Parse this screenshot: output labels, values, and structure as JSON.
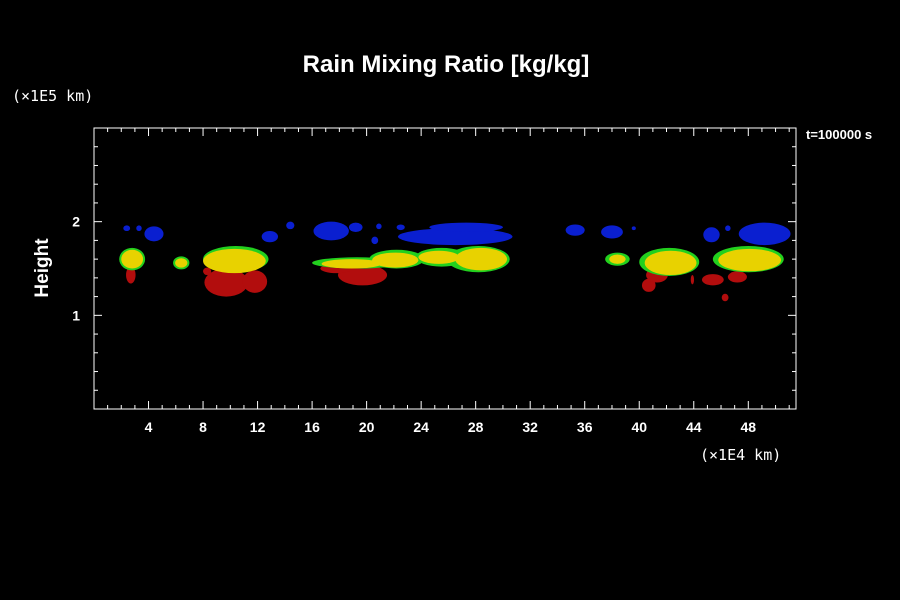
{
  "chart_data": {
    "type": "heatmap",
    "title": "Rain Mixing Ratio [kg/kg]",
    "ylabel": "Height",
    "x_unit_label": "(×1E4 km)",
    "y_unit_label": "(×1E5 km)",
    "time_label": "t=100000 s",
    "xlim": [
      0,
      51.5
    ],
    "ylim": [
      0,
      3
    ],
    "x_ticks": [
      4,
      8,
      12,
      16,
      20,
      24,
      28,
      32,
      36,
      40,
      44,
      48
    ],
    "y_ticks": [
      1,
      2
    ],
    "colors": {
      "background": "#000000",
      "axis": "#ffffff",
      "blue": "#0a1fd0",
      "green": "#22d01e",
      "yellow": "#e8d200",
      "red": "#b20d0d"
    },
    "regions": [
      {
        "color": "blue",
        "x": 2.4,
        "y": 1.93,
        "rx": 0.25,
        "ry": 0.03
      },
      {
        "color": "blue",
        "x": 3.3,
        "y": 1.93,
        "rx": 0.2,
        "ry": 0.03
      },
      {
        "color": "blue",
        "x": 4.4,
        "y": 1.87,
        "rx": 0.7,
        "ry": 0.08
      },
      {
        "color": "blue",
        "x": 12.9,
        "y": 1.84,
        "rx": 0.6,
        "ry": 0.06
      },
      {
        "color": "blue",
        "x": 14.4,
        "y": 1.96,
        "rx": 0.3,
        "ry": 0.04
      },
      {
        "color": "blue",
        "x": 17.4,
        "y": 1.9,
        "rx": 1.3,
        "ry": 0.1
      },
      {
        "color": "blue",
        "x": 19.2,
        "y": 1.94,
        "rx": 0.5,
        "ry": 0.05
      },
      {
        "color": "blue",
        "x": 20.9,
        "y": 1.95,
        "rx": 0.2,
        "ry": 0.03
      },
      {
        "color": "blue",
        "x": 20.6,
        "y": 1.8,
        "rx": 0.25,
        "ry": 0.04
      },
      {
        "color": "blue",
        "x": 22.5,
        "y": 1.94,
        "rx": 0.3,
        "ry": 0.03
      },
      {
        "color": "blue",
        "x": 26.5,
        "y": 1.84,
        "rx": 4.2,
        "ry": 0.09
      },
      {
        "color": "blue",
        "x": 27.3,
        "y": 1.94,
        "rx": 2.7,
        "ry": 0.05
      },
      {
        "color": "blue",
        "x": 35.3,
        "y": 1.91,
        "rx": 0.7,
        "ry": 0.06
      },
      {
        "color": "blue",
        "x": 38.0,
        "y": 1.89,
        "rx": 0.8,
        "ry": 0.07
      },
      {
        "color": "blue",
        "x": 39.6,
        "y": 1.93,
        "rx": 0.15,
        "ry": 0.02
      },
      {
        "color": "blue",
        "x": 45.3,
        "y": 1.86,
        "rx": 0.6,
        "ry": 0.08
      },
      {
        "color": "blue",
        "x": 46.5,
        "y": 1.93,
        "rx": 0.2,
        "ry": 0.03
      },
      {
        "color": "blue",
        "x": 49.2,
        "y": 1.87,
        "rx": 1.9,
        "ry": 0.12
      },
      {
        "color": "red",
        "x": 2.7,
        "y": 1.43,
        "rx": 0.35,
        "ry": 0.09
      },
      {
        "color": "red",
        "x": 9.7,
        "y": 1.35,
        "rx": 1.6,
        "ry": 0.15
      },
      {
        "color": "red",
        "x": 11.8,
        "y": 1.36,
        "rx": 0.9,
        "ry": 0.12
      },
      {
        "color": "red",
        "x": 8.3,
        "y": 1.47,
        "rx": 0.3,
        "ry": 0.04
      },
      {
        "color": "red",
        "x": 19.7,
        "y": 1.43,
        "rx": 1.8,
        "ry": 0.11
      },
      {
        "color": "red",
        "x": 17.8,
        "y": 1.5,
        "rx": 1.2,
        "ry": 0.05
      },
      {
        "color": "red",
        "x": 40.7,
        "y": 1.32,
        "rx": 0.5,
        "ry": 0.07
      },
      {
        "color": "red",
        "x": 41.3,
        "y": 1.43,
        "rx": 0.8,
        "ry": 0.08
      },
      {
        "color": "red",
        "x": 43.9,
        "y": 1.38,
        "rx": 0.12,
        "ry": 0.05
      },
      {
        "color": "red",
        "x": 45.4,
        "y": 1.38,
        "rx": 0.8,
        "ry": 0.06
      },
      {
        "color": "red",
        "x": 46.3,
        "y": 1.19,
        "rx": 0.25,
        "ry": 0.04
      },
      {
        "color": "red",
        "x": 47.2,
        "y": 1.41,
        "rx": 0.7,
        "ry": 0.06
      },
      {
        "color": "green",
        "x": 2.8,
        "y": 1.6,
        "rx": 0.95,
        "ry": 0.12
      },
      {
        "color": "green",
        "x": 6.4,
        "y": 1.56,
        "rx": 0.6,
        "ry": 0.07
      },
      {
        "color": "green",
        "x": 10.4,
        "y": 1.6,
        "rx": 2.4,
        "ry": 0.14
      },
      {
        "color": "green",
        "x": 19.3,
        "y": 1.56,
        "rx": 3.3,
        "ry": 0.06
      },
      {
        "color": "green",
        "x": 22.2,
        "y": 1.6,
        "rx": 2.0,
        "ry": 0.1
      },
      {
        "color": "green",
        "x": 25.5,
        "y": 1.62,
        "rx": 1.9,
        "ry": 0.1
      },
      {
        "color": "green",
        "x": 28.2,
        "y": 1.6,
        "rx": 2.3,
        "ry": 0.14
      },
      {
        "color": "green",
        "x": 38.4,
        "y": 1.6,
        "rx": 0.9,
        "ry": 0.07
      },
      {
        "color": "green",
        "x": 42.2,
        "y": 1.57,
        "rx": 2.2,
        "ry": 0.15
      },
      {
        "color": "green",
        "x": 48.0,
        "y": 1.6,
        "rx": 2.6,
        "ry": 0.14
      },
      {
        "color": "yellow",
        "x": 2.8,
        "y": 1.6,
        "rx": 0.8,
        "ry": 0.1
      },
      {
        "color": "yellow",
        "x": 6.4,
        "y": 1.56,
        "rx": 0.45,
        "ry": 0.05
      },
      {
        "color": "yellow",
        "x": 10.3,
        "y": 1.58,
        "rx": 2.3,
        "ry": 0.13
      },
      {
        "color": "yellow",
        "x": 18.9,
        "y": 1.55,
        "rx": 2.2,
        "ry": 0.05
      },
      {
        "color": "yellow",
        "x": 22.1,
        "y": 1.59,
        "rx": 1.7,
        "ry": 0.08
      },
      {
        "color": "yellow",
        "x": 25.3,
        "y": 1.62,
        "rx": 1.5,
        "ry": 0.07
      },
      {
        "color": "yellow",
        "x": 28.4,
        "y": 1.6,
        "rx": 1.9,
        "ry": 0.12
      },
      {
        "color": "yellow",
        "x": 38.4,
        "y": 1.6,
        "rx": 0.6,
        "ry": 0.05
      },
      {
        "color": "yellow",
        "x": 42.3,
        "y": 1.56,
        "rx": 1.9,
        "ry": 0.13
      },
      {
        "color": "yellow",
        "x": 48.1,
        "y": 1.59,
        "rx": 2.3,
        "ry": 0.12
      }
    ]
  }
}
